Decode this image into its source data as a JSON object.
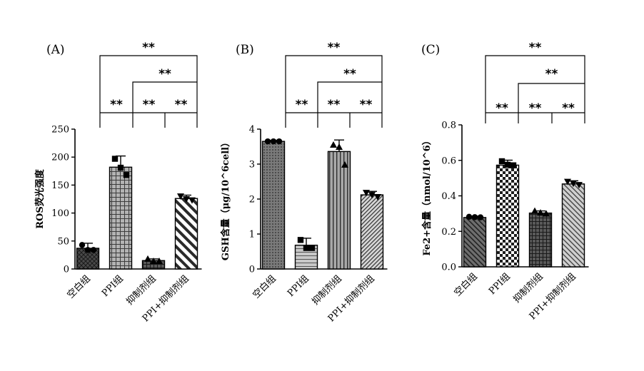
{
  "chart_data": [
    {
      "panel_label": "(A)",
      "type": "bar",
      "ylabel": "ROS荧光强度",
      "ylim": [
        0,
        250
      ],
      "yticks": [
        "0",
        "50",
        "100",
        "150",
        "200",
        "250"
      ],
      "categories": [
        "空白组",
        "PPI组",
        "抑制剂组",
        "PPI+抑制剂组"
      ],
      "values": [
        37,
        182,
        15,
        126
      ],
      "errors": [
        9,
        20,
        3,
        6
      ],
      "points": [
        [
          43,
          34,
          34
        ],
        [
          197,
          181,
          168
        ],
        [
          18,
          14,
          14
        ],
        [
          130,
          125,
          123
        ]
      ],
      "markers": [
        "circle",
        "square",
        "triangle",
        "triangle-down"
      ],
      "significance": [
        "**",
        "**",
        "**",
        "**"
      ]
    },
    {
      "panel_label": "(B)",
      "type": "bar",
      "ylabel": "GSH含量（μg/10^6cell）",
      "ylim": [
        0,
        4
      ],
      "yticks": [
        "0",
        "1",
        "2",
        "3",
        "4"
      ],
      "categories": [
        "空白组",
        "PPI组",
        "抑制剂组",
        "PPI+抑制剂组"
      ],
      "values": [
        3.65,
        0.68,
        3.36,
        2.12
      ],
      "errors": [
        0.03,
        0.2,
        0.33,
        0.1
      ],
      "points": [
        [
          3.65,
          3.65,
          3.65
        ],
        [
          0.83,
          0.6,
          0.6
        ],
        [
          3.55,
          3.49,
          2.98
        ],
        [
          2.18,
          2.12,
          2.06
        ]
      ],
      "markers": [
        "circle",
        "square",
        "triangle",
        "triangle-down"
      ],
      "significance": [
        "**",
        "**",
        "**",
        "**"
      ]
    },
    {
      "panel_label": "(C)",
      "type": "bar",
      "ylabel": "Fe2+含量（nmol/10^6）",
      "ylim": [
        0,
        0.8
      ],
      "yticks": [
        "0.0",
        "0.2",
        "0.4",
        "0.6",
        "0.8"
      ],
      "categories": [
        "空白组",
        "PPI组",
        "抑制剂组",
        "PPI+抑制剂组"
      ],
      "values": [
        0.278,
        0.573,
        0.303,
        0.467
      ],
      "errors": [
        0.008,
        0.028,
        0.012,
        0.018
      ],
      "points": [
        [
          0.282,
          0.28,
          0.279
        ],
        [
          0.595,
          0.575,
          0.572
        ],
        [
          0.315,
          0.305,
          0.3
        ],
        [
          0.48,
          0.47,
          0.462
        ]
      ],
      "markers": [
        "circle",
        "square",
        "triangle",
        "triangle-down"
      ],
      "significance": [
        "**",
        "**",
        "**",
        "**"
      ]
    }
  ]
}
